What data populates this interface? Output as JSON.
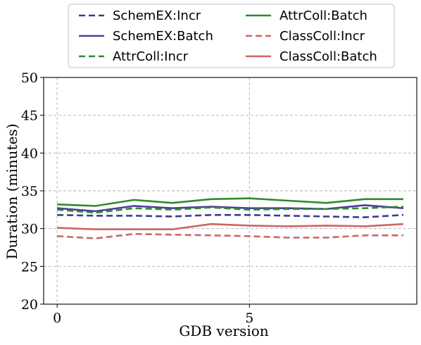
{
  "chart_data": {
    "type": "line",
    "title": "",
    "xlabel": "GDB version",
    "ylabel": "Duration (minutes)",
    "xlim": [
      -0.35,
      9.35
    ],
    "ylim": [
      20,
      50
    ],
    "xticks": [
      0,
      5
    ],
    "yticks": [
      20,
      25,
      30,
      35,
      40,
      45,
      50
    ],
    "grid": true,
    "legend_position": "top, above plot, 2 columns",
    "x": [
      0,
      1,
      2,
      3,
      4,
      5,
      6,
      7,
      8,
      9
    ],
    "series": [
      {
        "name": "SchemEX:Incr",
        "color": "#3b3b98",
        "dash": "dashed",
        "values": [
          31.8,
          31.7,
          31.7,
          31.6,
          31.8,
          31.8,
          31.7,
          31.6,
          31.5,
          31.8
        ]
      },
      {
        "name": "SchemEX:Batch",
        "color": "#4b3f9a",
        "dash": "solid",
        "values": [
          32.7,
          32.3,
          33.0,
          32.7,
          32.9,
          32.7,
          32.7,
          32.6,
          33.1,
          32.7
        ]
      },
      {
        "name": "AttrColl:Incr",
        "color": "#2e8b2e",
        "dash": "dashed",
        "values": [
          32.5,
          32.1,
          32.7,
          32.5,
          32.8,
          32.5,
          32.6,
          32.6,
          32.7,
          32.9
        ]
      },
      {
        "name": "AttrColl:Batch",
        "color": "#2e8b2e",
        "dash": "solid",
        "values": [
          33.2,
          33.0,
          33.8,
          33.4,
          33.9,
          34.0,
          33.7,
          33.4,
          33.9,
          33.9
        ]
      },
      {
        "name": "ClassColl:Incr",
        "color": "#cc6666",
        "dash": "dashed",
        "values": [
          29.0,
          28.7,
          29.3,
          29.2,
          29.1,
          29.0,
          28.8,
          28.8,
          29.1,
          29.1
        ]
      },
      {
        "name": "ClassColl:Batch",
        "color": "#cc6666",
        "dash": "solid",
        "values": [
          30.1,
          29.9,
          29.9,
          29.9,
          30.6,
          30.4,
          30.3,
          30.4,
          30.3,
          30.6
        ]
      }
    ]
  }
}
